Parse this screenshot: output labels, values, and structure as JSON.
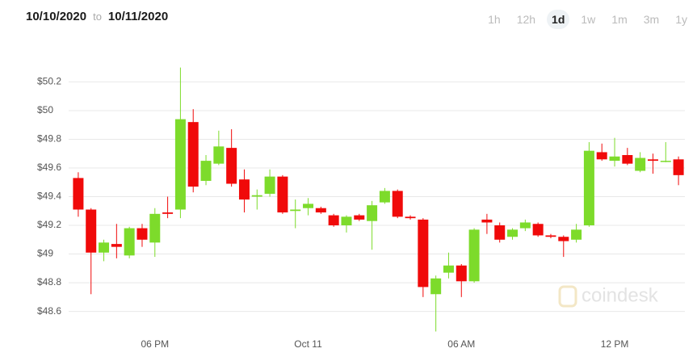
{
  "header": {
    "from": "10/10/2020",
    "to_word": "to",
    "to": "10/11/2020",
    "ranges": [
      "1h",
      "12h",
      "1d",
      "1w",
      "1m",
      "3m",
      "1y"
    ],
    "selected": 2
  },
  "chart_data": {
    "type": "candlestick",
    "watermark": "coindesk",
    "categories": [
      null,
      null,
      null,
      null,
      null,
      null,
      "06 PM",
      null,
      null,
      null,
      null,
      null,
      null,
      null,
      null,
      null,
      null,
      null,
      "Oct 11",
      null,
      null,
      null,
      null,
      null,
      null,
      null,
      null,
      null,
      null,
      null,
      "06 AM",
      null,
      null,
      null,
      null,
      null,
      null,
      null,
      null,
      null,
      null,
      null,
      "12 PM",
      null,
      null,
      null,
      null,
      null
    ],
    "open": [
      49.53,
      49.31,
      49.01,
      49.07,
      48.99,
      49.18,
      49.08,
      49.29,
      49.31,
      49.92,
      49.51,
      49.63,
      49.74,
      49.52,
      49.4,
      49.42,
      49.54,
      49.3,
      49.32,
      49.32,
      49.27,
      49.2,
      49.27,
      49.23,
      49.36,
      49.44,
      49.26,
      49.24,
      48.72,
      48.87,
      48.92,
      48.81,
      49.24,
      49.2,
      49.12,
      49.18,
      49.21,
      49.13,
      49.12,
      49.1,
      49.2,
      49.71,
      49.65,
      49.69,
      49.58,
      49.66,
      49.65,
      49.66
    ],
    "high": [
      49.57,
      49.32,
      49.1,
      49.21,
      49.19,
      49.21,
      49.32,
      49.4,
      50.3,
      50.01,
      49.69,
      49.86,
      49.87,
      49.59,
      49.45,
      49.59,
      49.55,
      49.38,
      49.39,
      49.33,
      49.28,
      49.27,
      49.28,
      49.37,
      49.46,
      49.45,
      49.27,
      49.25,
      48.85,
      49.01,
      48.93,
      49.18,
      49.28,
      49.22,
      49.18,
      49.24,
      49.22,
      49.14,
      49.13,
      49.21,
      49.78,
      49.77,
      49.81,
      49.74,
      49.71,
      49.7,
      49.78,
      49.68
    ],
    "low": [
      49.26,
      48.72,
      48.95,
      48.97,
      48.97,
      49.05,
      48.98,
      49.25,
      49.25,
      49.43,
      49.48,
      49.62,
      49.47,
      49.29,
      49.31,
      49.4,
      49.28,
      49.18,
      49.27,
      49.28,
      49.19,
      49.15,
      49.23,
      49.03,
      49.35,
      49.25,
      49.24,
      48.7,
      48.46,
      48.83,
      48.7,
      48.8,
      49.14,
      49.08,
      49.1,
      49.16,
      49.12,
      49.11,
      48.98,
      49.08,
      49.19,
      49.65,
      49.61,
      49.62,
      49.57,
      49.56,
      49.64,
      49.48
    ],
    "close": [
      49.31,
      49.01,
      49.08,
      49.05,
      49.18,
      49.1,
      49.28,
      49.28,
      49.94,
      49.47,
      49.65,
      49.75,
      49.49,
      49.38,
      49.41,
      49.54,
      49.29,
      49.31,
      49.35,
      49.29,
      49.2,
      49.26,
      49.24,
      49.34,
      49.44,
      49.26,
      49.25,
      48.77,
      48.83,
      48.92,
      48.81,
      49.17,
      49.22,
      49.1,
      49.17,
      49.22,
      49.13,
      49.12,
      49.09,
      49.17,
      49.72,
      49.66,
      49.68,
      49.63,
      49.67,
      49.65,
      49.65,
      49.55
    ],
    "up_color": "#7ddb2b",
    "down_color": "#f00a0a",
    "ylim": [
      48.44,
      50.36
    ],
    "yticks": [
      {
        "value": 48.6,
        "label": "$48.6"
      },
      {
        "value": 48.8,
        "label": "$48.8"
      },
      {
        "value": 49,
        "label": "$49"
      },
      {
        "value": 49.2,
        "label": "$49.2"
      },
      {
        "value": 49.4,
        "label": "$49.4"
      },
      {
        "value": 49.6,
        "label": "$49.6"
      },
      {
        "value": 49.8,
        "label": "$49.8"
      },
      {
        "value": 50,
        "label": "$50"
      },
      {
        "value": 50.2,
        "label": "$50.2"
      }
    ],
    "grid": true
  }
}
